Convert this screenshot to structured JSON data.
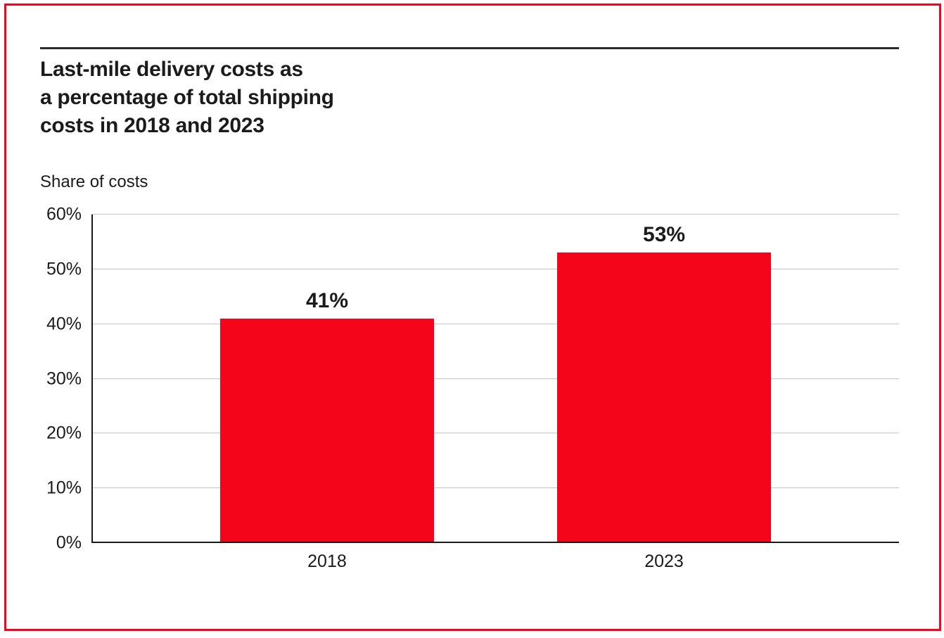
{
  "frame": {
    "border_color": "#f50519"
  },
  "header": {
    "title": "Last-mile delivery costs as\na percentage of total shipping\ncosts in 2018 and 2023"
  },
  "colors": {
    "bar_red": "#f50519",
    "text": "#1a1a1a",
    "gridline": "#c6c6c6",
    "top_rule": "#2b2b2b"
  },
  "chart_data": {
    "type": "bar",
    "title": "Last-mile delivery costs as a percentage of total shipping costs in 2018 and 2023",
    "xlabel": "",
    "ylabel": "Share of costs",
    "categories": [
      "2018",
      "2023"
    ],
    "values": [
      41,
      53
    ],
    "value_labels": [
      "41%",
      "53%"
    ],
    "yticks": [
      "0%",
      "10%",
      "20%",
      "30%",
      "40%",
      "50%",
      "60%"
    ],
    "ylim": [
      0,
      60
    ],
    "grid": "horizontal",
    "legend": "none",
    "bar_color": "#f50519"
  }
}
